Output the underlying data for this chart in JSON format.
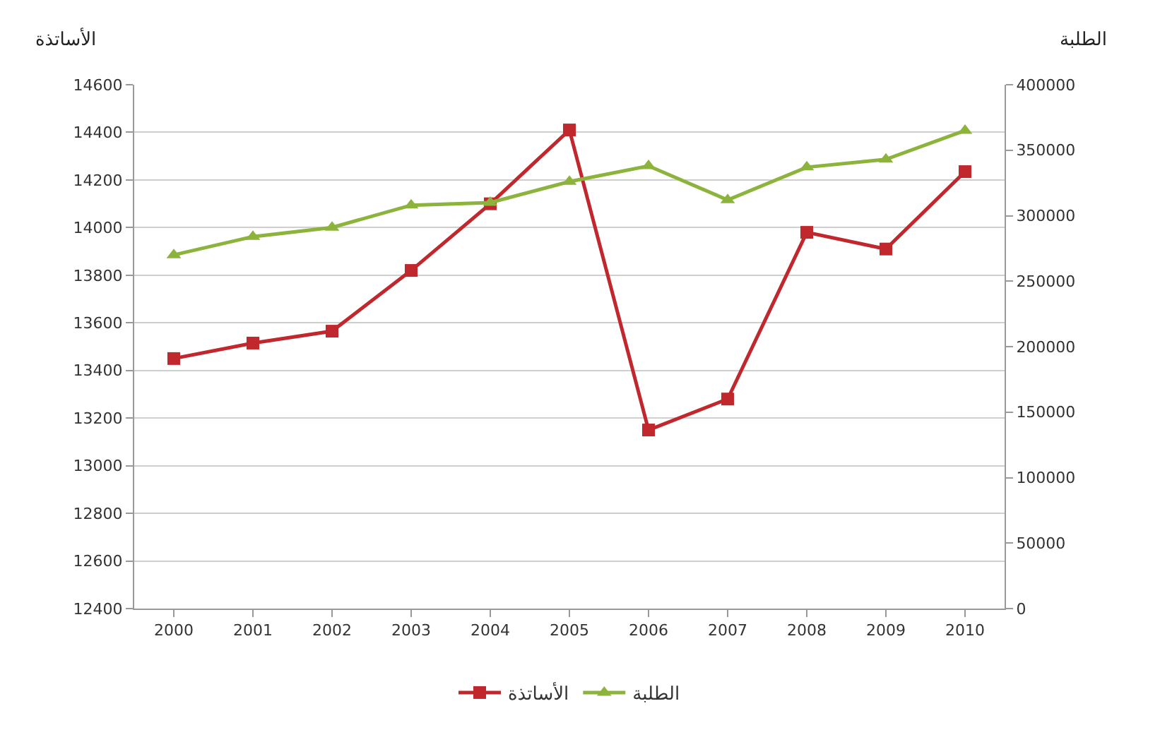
{
  "chart_data": {
    "type": "line",
    "ylabel": "الأساتذة",
    "y2label": "الطلبة",
    "categories": [
      "2000",
      "2001",
      "2002",
      "2003",
      "2004",
      "2005",
      "2006",
      "2007",
      "2008",
      "2009",
      "2010"
    ],
    "series": [
      {
        "name": "الأساتذة",
        "color": "#c0282d",
        "marker": "square",
        "values": [
          13450,
          13515,
          13565,
          13820,
          14100,
          14410,
          13150,
          13280,
          13980,
          13910,
          14235
        ]
      },
      {
        "name": "الطلبة",
        "color": "#8cb43c",
        "marker": "triangle",
        "axis": "y2",
        "values": [
          270000,
          284000,
          291000,
          308000,
          310000,
          326000,
          338000,
          312000,
          337000,
          343000,
          365000
        ]
      }
    ],
    "ylim": [
      12400,
      14600
    ],
    "yticks": [
      12400,
      12600,
      12800,
      13000,
      13200,
      13400,
      13600,
      13800,
      14000,
      14200,
      14400,
      14600
    ],
    "y2lim": [
      0,
      400000
    ],
    "y2ticks": [
      0,
      50000,
      100000,
      150000,
      200000,
      250000,
      300000,
      350000,
      400000
    ],
    "grid": "y",
    "legend": "bottom",
    "line_style": "solid"
  }
}
